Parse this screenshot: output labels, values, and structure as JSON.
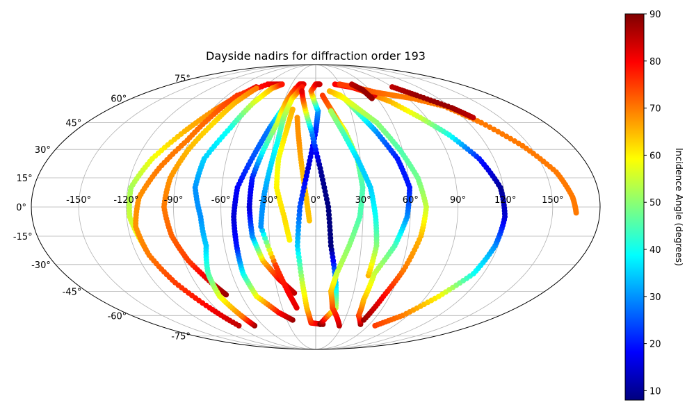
{
  "chart_data": {
    "type": "scatter",
    "projection": "mollweide",
    "title": "Dayside nadirs for diffraction order 193",
    "xlabel": "",
    "ylabel": "",
    "xlim": [
      -180,
      180
    ],
    "ylim": [
      -90,
      90
    ],
    "grid": true,
    "lon_ticks": [
      -150,
      -120,
      -90,
      -60,
      -30,
      0,
      30,
      60,
      90,
      120,
      150
    ],
    "lon_tick_labels": [
      "-150°",
      "-120°",
      "-90°",
      "-60°",
      "-30°",
      "0°",
      "30°",
      "60°",
      "90°",
      "120°",
      "150°"
    ],
    "lat_ticks": [
      -75,
      -60,
      -45,
      -30,
      -15,
      0,
      15,
      30,
      45,
      60,
      75
    ],
    "lat_tick_labels": [
      "-75°",
      "-60°",
      "-45°",
      "-30°",
      "-15°",
      "0°",
      "15°",
      "30°",
      "45°",
      "60°",
      "75°"
    ],
    "colorbar": {
      "label": "Incidence Angle (degrees)",
      "colormap": "jet",
      "vmin": 8,
      "vmax": 90,
      "ticks": [
        10,
        20,
        30,
        40,
        50,
        60,
        70,
        80,
        90
      ],
      "tick_labels": [
        "10",
        "20",
        "30",
        "40",
        "50",
        "60",
        "70",
        "80",
        "90"
      ]
    },
    "series": [
      {
        "points": [
          [
            -113,
            -20,
            60
          ],
          [
            -118,
            -5,
            55
          ],
          [
            -118,
            10,
            52
          ],
          [
            -110,
            25,
            58
          ],
          [
            -98,
            40,
            65
          ],
          [
            -88,
            52,
            68
          ],
          [
            -80,
            60,
            75
          ],
          [
            -70,
            68,
            82
          ]
        ]
      },
      {
        "points": [
          [
            -88,
            -67,
            85
          ],
          [
            -95,
            -55,
            80
          ],
          [
            -105,
            -40,
            75
          ],
          [
            -112,
            -25,
            70
          ],
          [
            -115,
            -10,
            68
          ],
          [
            -112,
            5,
            68
          ],
          [
            -103,
            20,
            70
          ],
          [
            -92,
            35,
            70
          ],
          [
            -85,
            50,
            72
          ],
          [
            -80,
            62,
            75
          ],
          [
            -60,
            70,
            80
          ],
          [
            -42,
            70,
            84
          ]
        ]
      },
      {
        "points": [
          [
            -72,
            -47,
            88
          ],
          [
            -78,
            -40,
            84
          ],
          [
            -87,
            -28,
            75
          ],
          [
            -93,
            -15,
            72
          ],
          [
            -96,
            0,
            70
          ],
          [
            -94,
            15,
            68
          ],
          [
            -88,
            30,
            65
          ],
          [
            -80,
            45,
            62
          ],
          [
            -75,
            57,
            65
          ],
          [
            -68,
            67,
            70
          ]
        ]
      },
      {
        "points": [
          [
            -70,
            -67,
            88
          ],
          [
            -73,
            -60,
            70
          ],
          [
            -78,
            -48,
            58
          ],
          [
            -77,
            -35,
            45
          ],
          [
            -72,
            -20,
            35
          ],
          [
            -73,
            -5,
            30
          ],
          [
            -77,
            10,
            30
          ],
          [
            -75,
            25,
            35
          ],
          [
            -65,
            42,
            40
          ],
          [
            -58,
            57,
            55
          ],
          [
            -50,
            67,
            65
          ],
          [
            -42,
            70,
            78
          ]
        ]
      },
      {
        "points": [
          [
            -24,
            -63,
            88
          ],
          [
            -35,
            -58,
            80
          ],
          [
            -48,
            -48,
            60
          ],
          [
            -52,
            -35,
            40
          ],
          [
            -52,
            -20,
            20
          ],
          [
            -52,
            -5,
            15
          ],
          [
            -50,
            10,
            18
          ],
          [
            -42,
            27,
            25
          ],
          [
            -35,
            42,
            28
          ],
          [
            -28,
            55,
            45
          ],
          [
            -25,
            62,
            65
          ],
          [
            -23,
            67,
            75
          ]
        ]
      },
      {
        "points": [
          [
            -17,
            -46,
            85
          ],
          [
            -27,
            -38,
            80
          ],
          [
            -36,
            -28,
            65
          ],
          [
            -41,
            -15,
            30
          ],
          [
            -42,
            0,
            15
          ],
          [
            -41,
            15,
            20
          ],
          [
            -36,
            30,
            40
          ],
          [
            -30,
            45,
            55
          ],
          [
            -28,
            57,
            65
          ],
          [
            -25,
            64,
            72
          ],
          [
            -20,
            70,
            80
          ],
          [
            -15,
            70,
            82
          ]
        ]
      },
      {
        "points": [
          [
            -17,
            -55,
            82
          ],
          [
            -22,
            -45,
            80
          ],
          [
            -28,
            -30,
            75
          ],
          [
            -35,
            -10,
            30
          ],
          [
            -33,
            5,
            30
          ],
          [
            -30,
            20,
            35
          ],
          [
            -27,
            35,
            40
          ],
          [
            -26,
            48,
            50
          ],
          [
            -23,
            60,
            60
          ],
          [
            -16,
            68,
            78
          ]
        ]
      },
      {
        "points": [
          [
            -17,
            -17,
            60
          ],
          [
            -20,
            -5,
            62
          ],
          [
            -25,
            10,
            60
          ],
          [
            -25,
            25,
            58
          ],
          [
            -22,
            40,
            62
          ],
          [
            -20,
            53,
            65
          ]
        ]
      },
      {
        "points": [
          [
            -4,
            -7,
            64
          ],
          [
            -6,
            5,
            64
          ],
          [
            -9,
            20,
            65
          ],
          [
            -12,
            35,
            68
          ],
          [
            -15,
            48,
            68
          ]
        ]
      },
      {
        "points": [
          [
            8,
            -66,
            88
          ],
          [
            -5,
            -65,
            78
          ],
          [
            -8,
            -55,
            65
          ],
          [
            -10,
            -40,
            55
          ],
          [
            -12,
            -20,
            35
          ],
          [
            -10,
            0,
            25
          ],
          [
            -5,
            20,
            15
          ],
          [
            0,
            40,
            20
          ],
          [
            2,
            52,
            30
          ],
          [
            -5,
            65,
            70
          ],
          [
            0,
            70,
            80
          ],
          [
            5,
            70,
            84
          ]
        ]
      },
      {
        "points": [
          [
            5,
            -66,
            90
          ],
          [
            18,
            -55,
            55
          ],
          [
            15,
            -40,
            35
          ],
          [
            10,
            -20,
            8
          ],
          [
            8,
            0,
            8
          ],
          [
            3,
            20,
            10
          ],
          [
            -3,
            40,
            30
          ],
          [
            -10,
            55,
            65
          ],
          [
            -15,
            65,
            82
          ]
        ]
      },
      {
        "points": [
          [
            27,
            -67,
            85
          ],
          [
            15,
            -55,
            75
          ],
          [
            12,
            -45,
            65
          ],
          [
            15,
            -35,
            55
          ],
          [
            22,
            -20,
            50
          ],
          [
            28,
            -5,
            45
          ],
          [
            30,
            10,
            45
          ],
          [
            28,
            25,
            48
          ],
          [
            22,
            40,
            55
          ],
          [
            14,
            52,
            70
          ],
          [
            7,
            62,
            75
          ]
        ]
      },
      {
        "points": [
          [
            38,
            -36,
            65
          ],
          [
            40,
            -20,
            50
          ],
          [
            38,
            -5,
            40
          ],
          [
            35,
            10,
            35
          ],
          [
            28,
            25,
            35
          ],
          [
            20,
            40,
            45
          ],
          [
            13,
            52,
            52
          ]
        ]
      },
      {
        "points": [
          [
            50,
            -66,
            88
          ],
          [
            42,
            -60,
            75
          ],
          [
            40,
            -50,
            65
          ],
          [
            42,
            -35,
            55
          ],
          [
            52,
            -20,
            45
          ],
          [
            58,
            -5,
            30
          ],
          [
            60,
            10,
            20
          ],
          [
            55,
            25,
            20
          ],
          [
            45,
            40,
            30
          ],
          [
            35,
            52,
            45
          ],
          [
            28,
            60,
            55
          ],
          [
            20,
            63,
            62
          ]
        ]
      },
      {
        "points": [
          [
            50,
            -63,
            88
          ],
          [
            55,
            -48,
            80
          ],
          [
            62,
            -33,
            70
          ],
          [
            68,
            -15,
            65
          ],
          [
            70,
            0,
            55
          ],
          [
            66,
            15,
            48
          ],
          [
            58,
            30,
            45
          ],
          [
            48,
            45,
            50
          ],
          [
            35,
            55,
            55
          ],
          [
            25,
            62,
            60
          ],
          [
            15,
            65,
            65
          ]
        ]
      },
      {
        "points": [
          [
            68,
            -67,
            75
          ],
          [
            85,
            -60,
            70
          ],
          [
            100,
            -48,
            60
          ],
          [
            113,
            -35,
            40
          ],
          [
            118,
            -20,
            30
          ],
          [
            120,
            -5,
            15
          ],
          [
            118,
            10,
            10
          ],
          [
            110,
            25,
            20
          ],
          [
            98,
            38,
            40
          ],
          [
            85,
            48,
            55
          ],
          [
            70,
            58,
            65
          ],
          [
            55,
            64,
            72
          ],
          [
            45,
            67,
            75
          ]
        ]
      },
      {
        "points": [
          [
            24,
            70,
            80
          ],
          [
            40,
            68,
            80
          ],
          [
            52,
            66,
            80
          ],
          [
            60,
            62,
            82
          ]
        ]
      },
      {
        "points": [
          [
            30,
            70,
            75
          ],
          [
            45,
            68,
            75
          ],
          [
            65,
            64,
            72
          ],
          [
            80,
            62,
            70
          ],
          [
            95,
            60,
            70
          ],
          [
            115,
            55,
            70
          ],
          [
            130,
            45,
            70
          ],
          [
            145,
            32,
            70
          ],
          [
            157,
            18,
            70
          ],
          [
            163,
            5,
            70
          ],
          [
            165,
            -3,
            70
          ]
        ]
      },
      {
        "points": [
          [
            45,
            70,
            85
          ],
          [
            52,
            66,
            88
          ],
          [
            55,
            60,
            88
          ]
        ]
      },
      {
        "points": [
          [
            90,
            68,
            85
          ],
          [
            103,
            62,
            88
          ],
          [
            120,
            54,
            88
          ],
          [
            128,
            48,
            85
          ]
        ]
      }
    ]
  }
}
